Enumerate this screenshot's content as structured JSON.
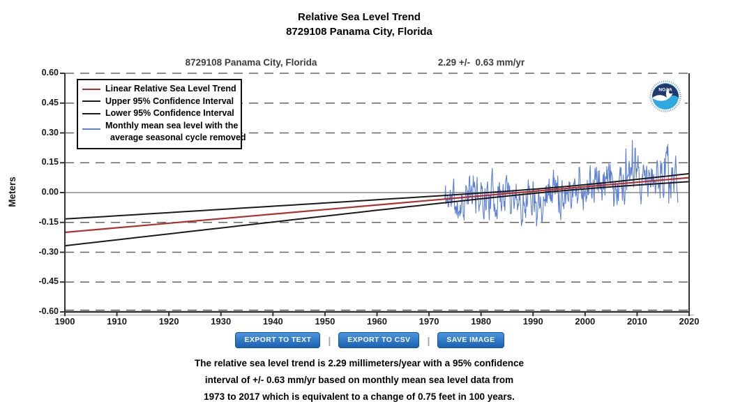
{
  "header": {
    "title_line1": "Relative Sea Level Trend",
    "title_line2": "8729108 Panama City, Florida"
  },
  "chart": {
    "station_label": "8729108 Panama City, Florida",
    "trend_value_label": "2.29 +/-  0.63 mm/yr",
    "ylabel": "Meters"
  },
  "legend": {
    "items": [
      {
        "label": "Linear Relative Sea Level Trend",
        "color": "#b03030"
      },
      {
        "label": "Upper 95% Confidence Interval",
        "color": "#1a1a1a"
      },
      {
        "label": "Lower 95% Confidence Interval",
        "color": "#1a1a1a"
      },
      {
        "label": "Monthly mean sea level with the",
        "label_line2": "average seasonal cycle removed",
        "color": "#5b7ed7"
      }
    ]
  },
  "noaa": {
    "label": "NOAA"
  },
  "toolbar": {
    "divider": "|",
    "buttons": [
      {
        "label": "EXPORT TO TEXT"
      },
      {
        "label": "EXPORT TO CSV"
      },
      {
        "label": "SAVE IMAGE"
      }
    ]
  },
  "footer": {
    "lines": [
      "The relative sea level trend is 2.29 millimeters/year with a 95% confidence",
      "interval of +/- 0.63 mm/yr based on monthly mean sea level data from",
      "1973 to 2017 which is equivalent to a change of 0.75 feet in 100 years."
    ]
  },
  "chart_data": {
    "type": "line",
    "title": "8729108 Panama City, Florida",
    "trend_mm_per_yr": 2.29,
    "ci95_mm_per_yr": 0.63,
    "data_period": [
      1973,
      2017
    ],
    "equivalent_change": "0.75 feet in 100 years",
    "xlim": [
      1900,
      2020
    ],
    "ylim": [
      -0.6,
      0.6
    ],
    "xticks": [
      1900,
      1910,
      1920,
      1930,
      1940,
      1950,
      1960,
      1970,
      1980,
      1990,
      2000,
      2010,
      2020
    ],
    "yticks": [
      0.6,
      0.45,
      0.3,
      0.15,
      0,
      -0.15,
      -0.3,
      -0.45,
      -0.6
    ],
    "ylabel": "Meters",
    "grid": "dashed horizontal gridlines at each tick; solid gray line at 0.00",
    "legend_position": "top-left",
    "colors": {
      "trend": "#b03030",
      "confidence": "#1a1a1a",
      "monthly": "#5b7ed7",
      "grid": "#666666",
      "zero_line": "#999999",
      "axis": "#333333"
    },
    "series": [
      {
        "name": "Linear Relative Sea Level Trend",
        "x": [
          1900,
          2020
        ],
        "y": [
          -0.2,
          0.075
        ]
      },
      {
        "name": "Upper 95% Confidence Interval",
        "x": [
          1900,
          1995,
          2020
        ],
        "y": [
          -0.133,
          0.028,
          0.095
        ]
      },
      {
        "name": "Lower 95% Confidence Interval",
        "x": [
          1900,
          1995,
          2020
        ],
        "y": [
          -0.267,
          0.008,
          0.055
        ]
      },
      {
        "name": "Monthly mean sea level with the average seasonal cycle removed",
        "x_start": 1973.0,
        "x_end": 2017.9,
        "step_months": 1,
        "approx_value_range": [
          -0.23,
          0.28
        ],
        "gen": {
          "seed": 11,
          "phi": 0.62,
          "amp": 0.08,
          "spike_prob": 0.03,
          "spike_mult": 2.2,
          "events": [
            {
              "t": 1975.4,
              "a": -0.1,
              "w": 0.25
            },
            {
              "t": 1987.7,
              "a": -0.14,
              "w": 0.2
            },
            {
              "t": 2015.8,
              "a": 0.15,
              "w": 0.35
            }
          ]
        }
      }
    ],
    "trend_model": {
      "slope_m_per_yr": 0.00229167,
      "zero_crossing_year": 1987.27
    },
    "ci_model": {
      "center_year": 1995,
      "k": 0.0007,
      "min_sq": 200
    }
  }
}
